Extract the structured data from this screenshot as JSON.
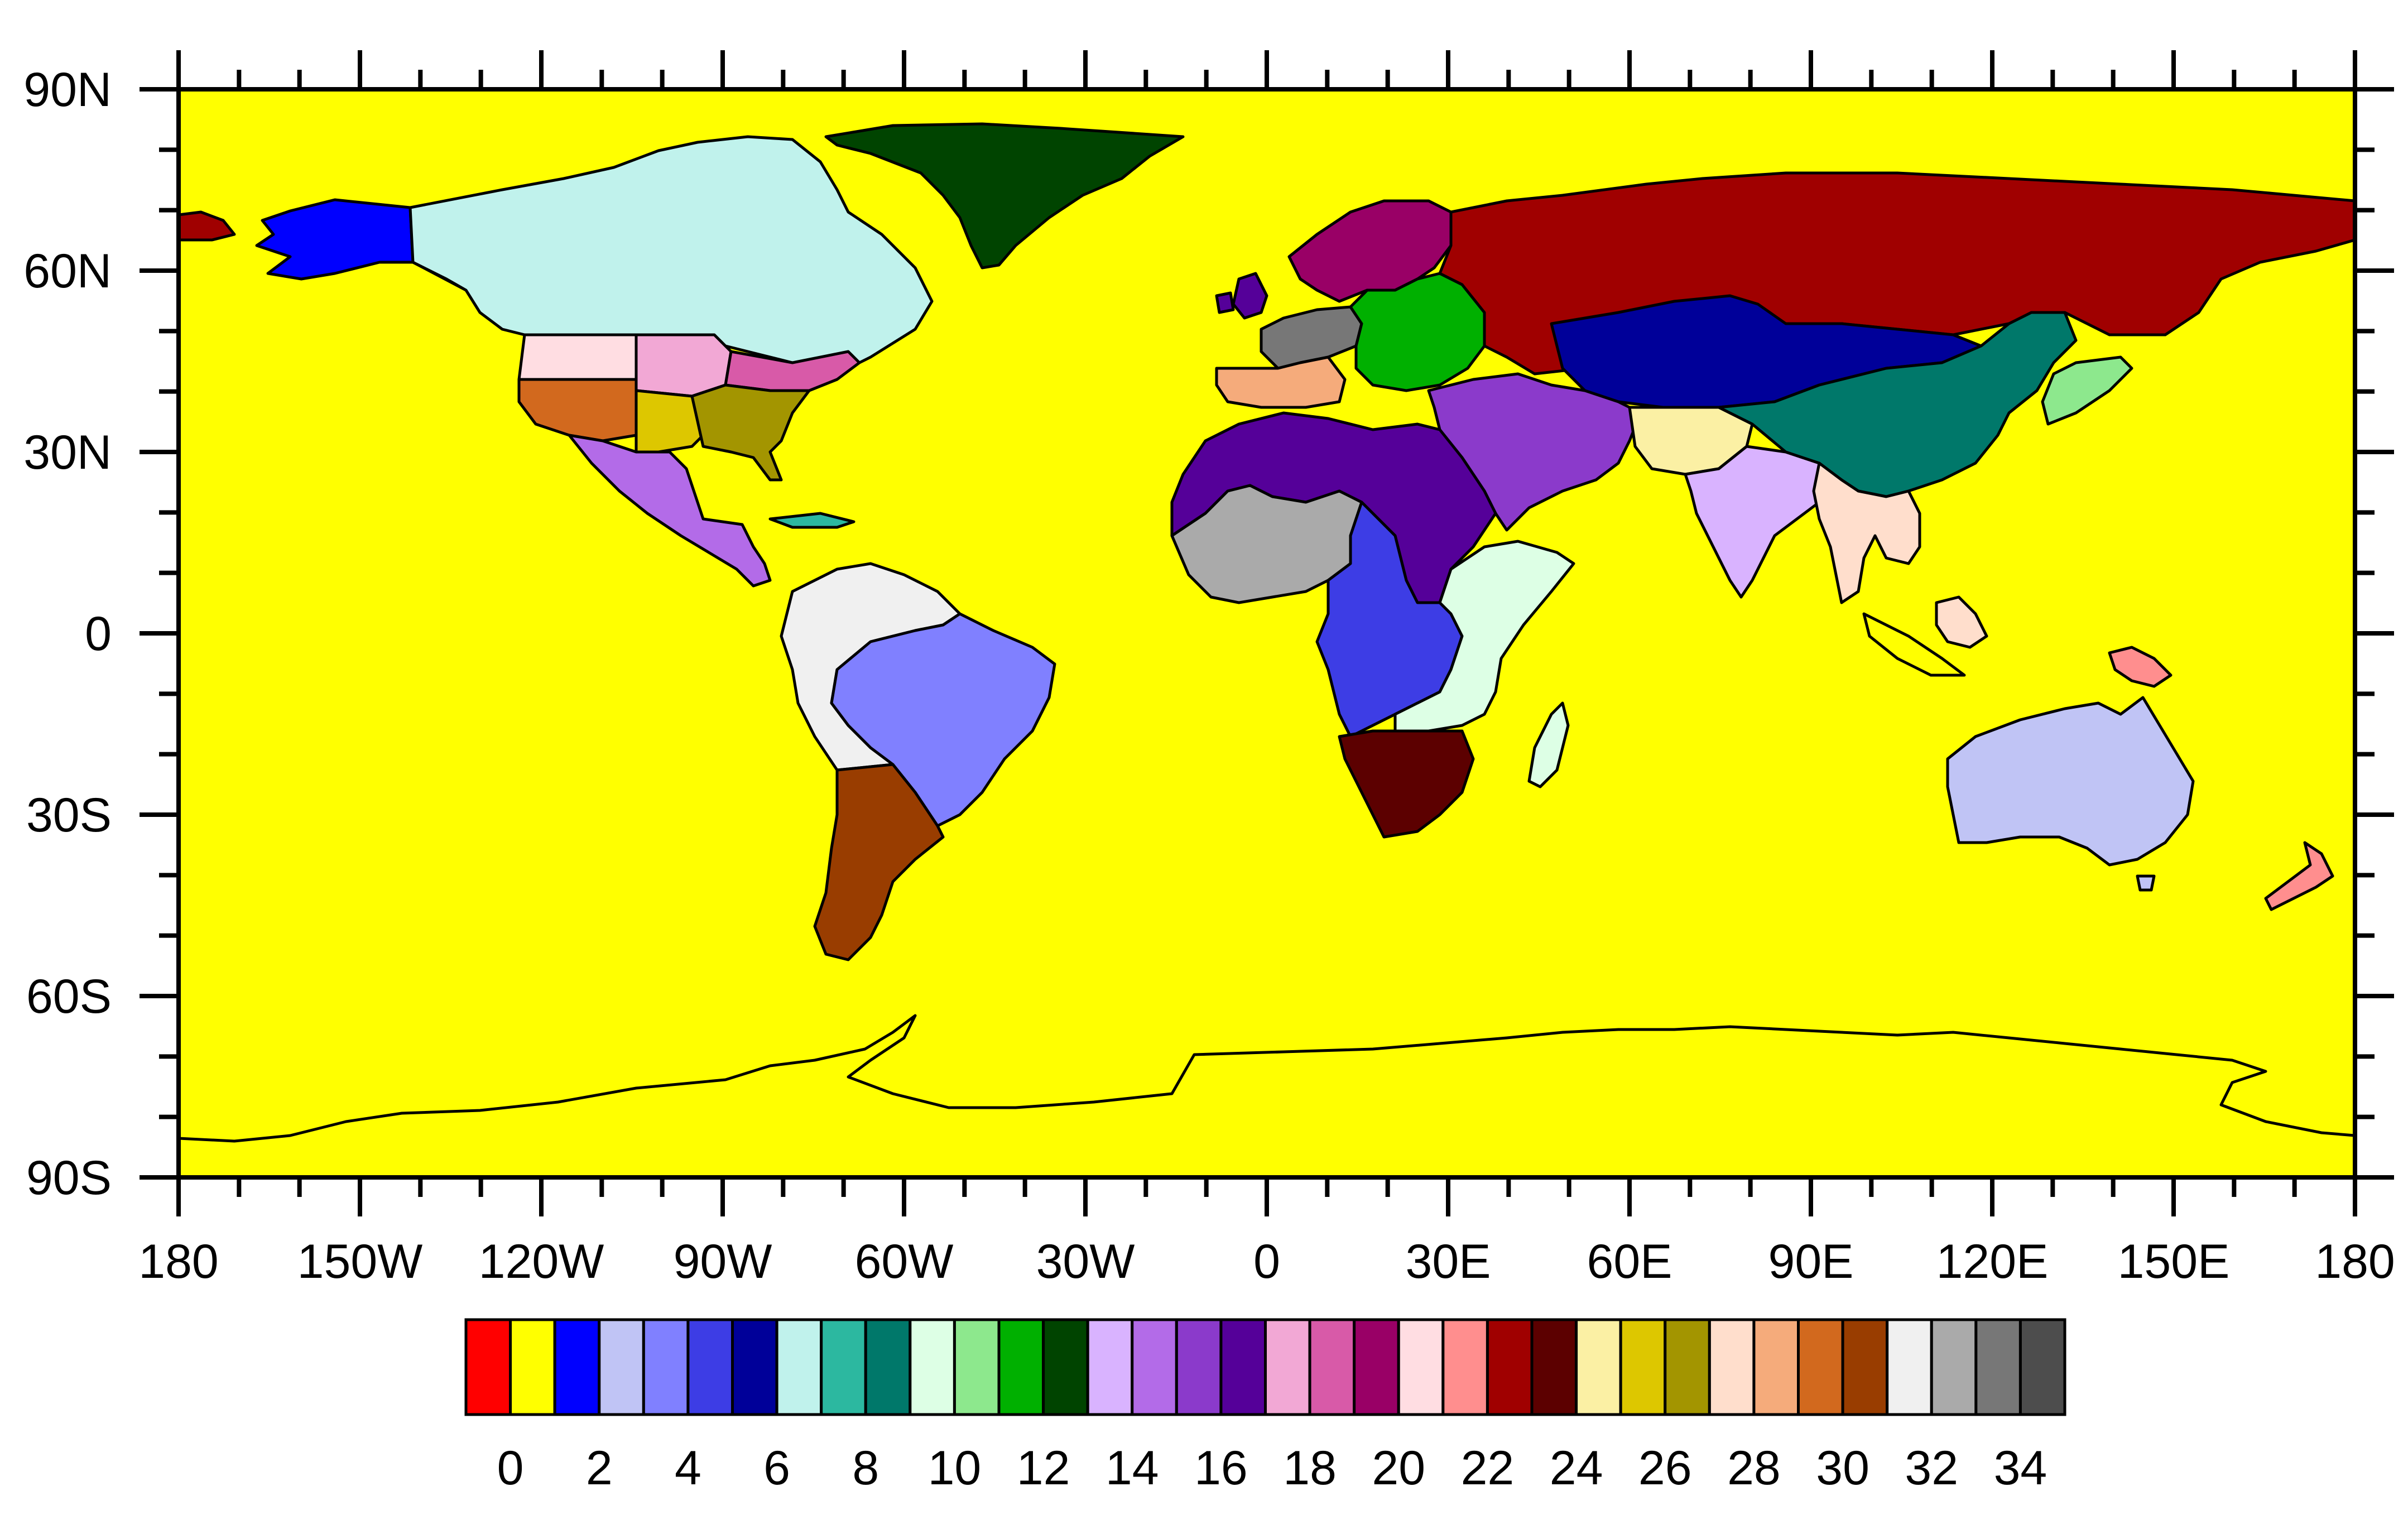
{
  "map": {
    "background_color": "#ffff00",
    "projection": "cylindrical-equidistant",
    "lon_range": [
      -180,
      180
    ],
    "lat_range": [
      -90,
      90
    ],
    "lat_labels": [
      {
        "value": 90,
        "text": "90N"
      },
      {
        "value": 60,
        "text": "60N"
      },
      {
        "value": 30,
        "text": "30N"
      },
      {
        "value": 0,
        "text": "0"
      },
      {
        "value": -30,
        "text": "30S"
      },
      {
        "value": -60,
        "text": "60S"
      },
      {
        "value": -90,
        "text": "90S"
      }
    ],
    "lon_labels": [
      {
        "value": -180,
        "text": "180"
      },
      {
        "value": -150,
        "text": "150W"
      },
      {
        "value": -120,
        "text": "120W"
      },
      {
        "value": -90,
        "text": "90W"
      },
      {
        "value": -60,
        "text": "60W"
      },
      {
        "value": -30,
        "text": "30W"
      },
      {
        "value": 0,
        "text": "0"
      },
      {
        "value": 30,
        "text": "30E"
      },
      {
        "value": 60,
        "text": "60E"
      },
      {
        "value": 90,
        "text": "90E"
      },
      {
        "value": 120,
        "text": "120E"
      },
      {
        "value": 150,
        "text": "150E"
      },
      {
        "value": 180,
        "text": "180"
      }
    ],
    "regions": [
      {
        "name": "alaska",
        "value": 2,
        "color": "#0000ff"
      },
      {
        "name": "canada",
        "value": 7,
        "color": "#c0f2ec"
      },
      {
        "name": "greenland",
        "value": 13,
        "color": "#004400"
      },
      {
        "name": "us-northwest",
        "value": 21,
        "color": "#ffdde2"
      },
      {
        "name": "us-north-central",
        "value": 18,
        "color": "#f2a8d5"
      },
      {
        "name": "us-northeast",
        "value": 19,
        "color": "#d85aa8"
      },
      {
        "name": "us-southwest",
        "value": 30,
        "color": "#d2691e"
      },
      {
        "name": "us-south-central",
        "value": 26,
        "color": "#ddc700"
      },
      {
        "name": "us-southeast",
        "value": 27,
        "color": "#a39500"
      },
      {
        "name": "mexico-central-america",
        "value": 15,
        "color": "#b36be8"
      },
      {
        "name": "caribbean",
        "value": 8,
        "color": "#2cb8a0"
      },
      {
        "name": "amazon-north",
        "value": 32,
        "color": "#f0f0f0"
      },
      {
        "name": "brazil",
        "value": 4,
        "color": "#8080ff"
      },
      {
        "name": "southern-south-america",
        "value": 31,
        "color": "#993d00"
      },
      {
        "name": "northern-europe",
        "value": 20,
        "color": "#990066"
      },
      {
        "name": "western-europe",
        "value": 34,
        "color": "#777777"
      },
      {
        "name": "eastern-europe",
        "value": 12,
        "color": "#00b000"
      },
      {
        "name": "mediterranean",
        "value": 29,
        "color": "#f5ab7b"
      },
      {
        "name": "russia",
        "value": 23,
        "color": "#a00000"
      },
      {
        "name": "central-asia",
        "value": 6,
        "color": "#000099"
      },
      {
        "name": "middle-east",
        "value": 16,
        "color": "#8b3acb"
      },
      {
        "name": "sahara",
        "value": 17,
        "color": "#550099"
      },
      {
        "name": "west-africa",
        "value": 33,
        "color": "#aaaaaa"
      },
      {
        "name": "central-africa",
        "value": 5,
        "color": "#3d3de5"
      },
      {
        "name": "east-africa",
        "value": 10,
        "color": "#ddffe5"
      },
      {
        "name": "southern-africa",
        "value": 24,
        "color": "#5c0000"
      },
      {
        "name": "madagascar",
        "value": 10,
        "color": "#ddffe5"
      },
      {
        "name": "tibet",
        "value": 25,
        "color": "#fbf0a4"
      },
      {
        "name": "south-asia",
        "value": 14,
        "color": "#d9b3ff"
      },
      {
        "name": "east-asia",
        "value": 9,
        "color": "#00786a"
      },
      {
        "name": "southeast-asia",
        "value": 28,
        "color": "#ffdecc"
      },
      {
        "name": "japan-korea",
        "value": 11,
        "color": "#8de88d"
      },
      {
        "name": "new-guinea",
        "value": 22,
        "color": "#ff8e8e"
      },
      {
        "name": "australia",
        "value": 3,
        "color": "#c0c4f5"
      },
      {
        "name": "new-zealand",
        "value": 22,
        "color": "#ff8e8e"
      },
      {
        "name": "uk-ireland",
        "value": 17,
        "color": "#550099"
      },
      {
        "name": "scandinavia-north",
        "value": 20,
        "color": "#990066"
      }
    ]
  },
  "colorbar": {
    "colors": [
      "#ff0000",
      "#ffff00",
      "#0000ff",
      "#c0c4f5",
      "#8080ff",
      "#3d3de5",
      "#000099",
      "#c0f2ec",
      "#2cb8a0",
      "#00786a",
      "#ddffe5",
      "#8de88d",
      "#00b000",
      "#004400",
      "#d9b3ff",
      "#b36be8",
      "#8b3acb",
      "#550099",
      "#f2a8d5",
      "#d85aa8",
      "#990066",
      "#ffdde2",
      "#ff8e8e",
      "#a00000",
      "#5c0000",
      "#fbf0a4",
      "#ddc700",
      "#a39500",
      "#ffdecc",
      "#f5ab7b",
      "#d2691e",
      "#993d00",
      "#f0f0f0",
      "#aaaaaa",
      "#777777",
      "#4d4d4d"
    ],
    "labels": [
      "0",
      "2",
      "4",
      "6",
      "8",
      "10",
      "12",
      "14",
      "16",
      "18",
      "20",
      "22",
      "24",
      "26",
      "28",
      "30",
      "32",
      "34"
    ]
  }
}
